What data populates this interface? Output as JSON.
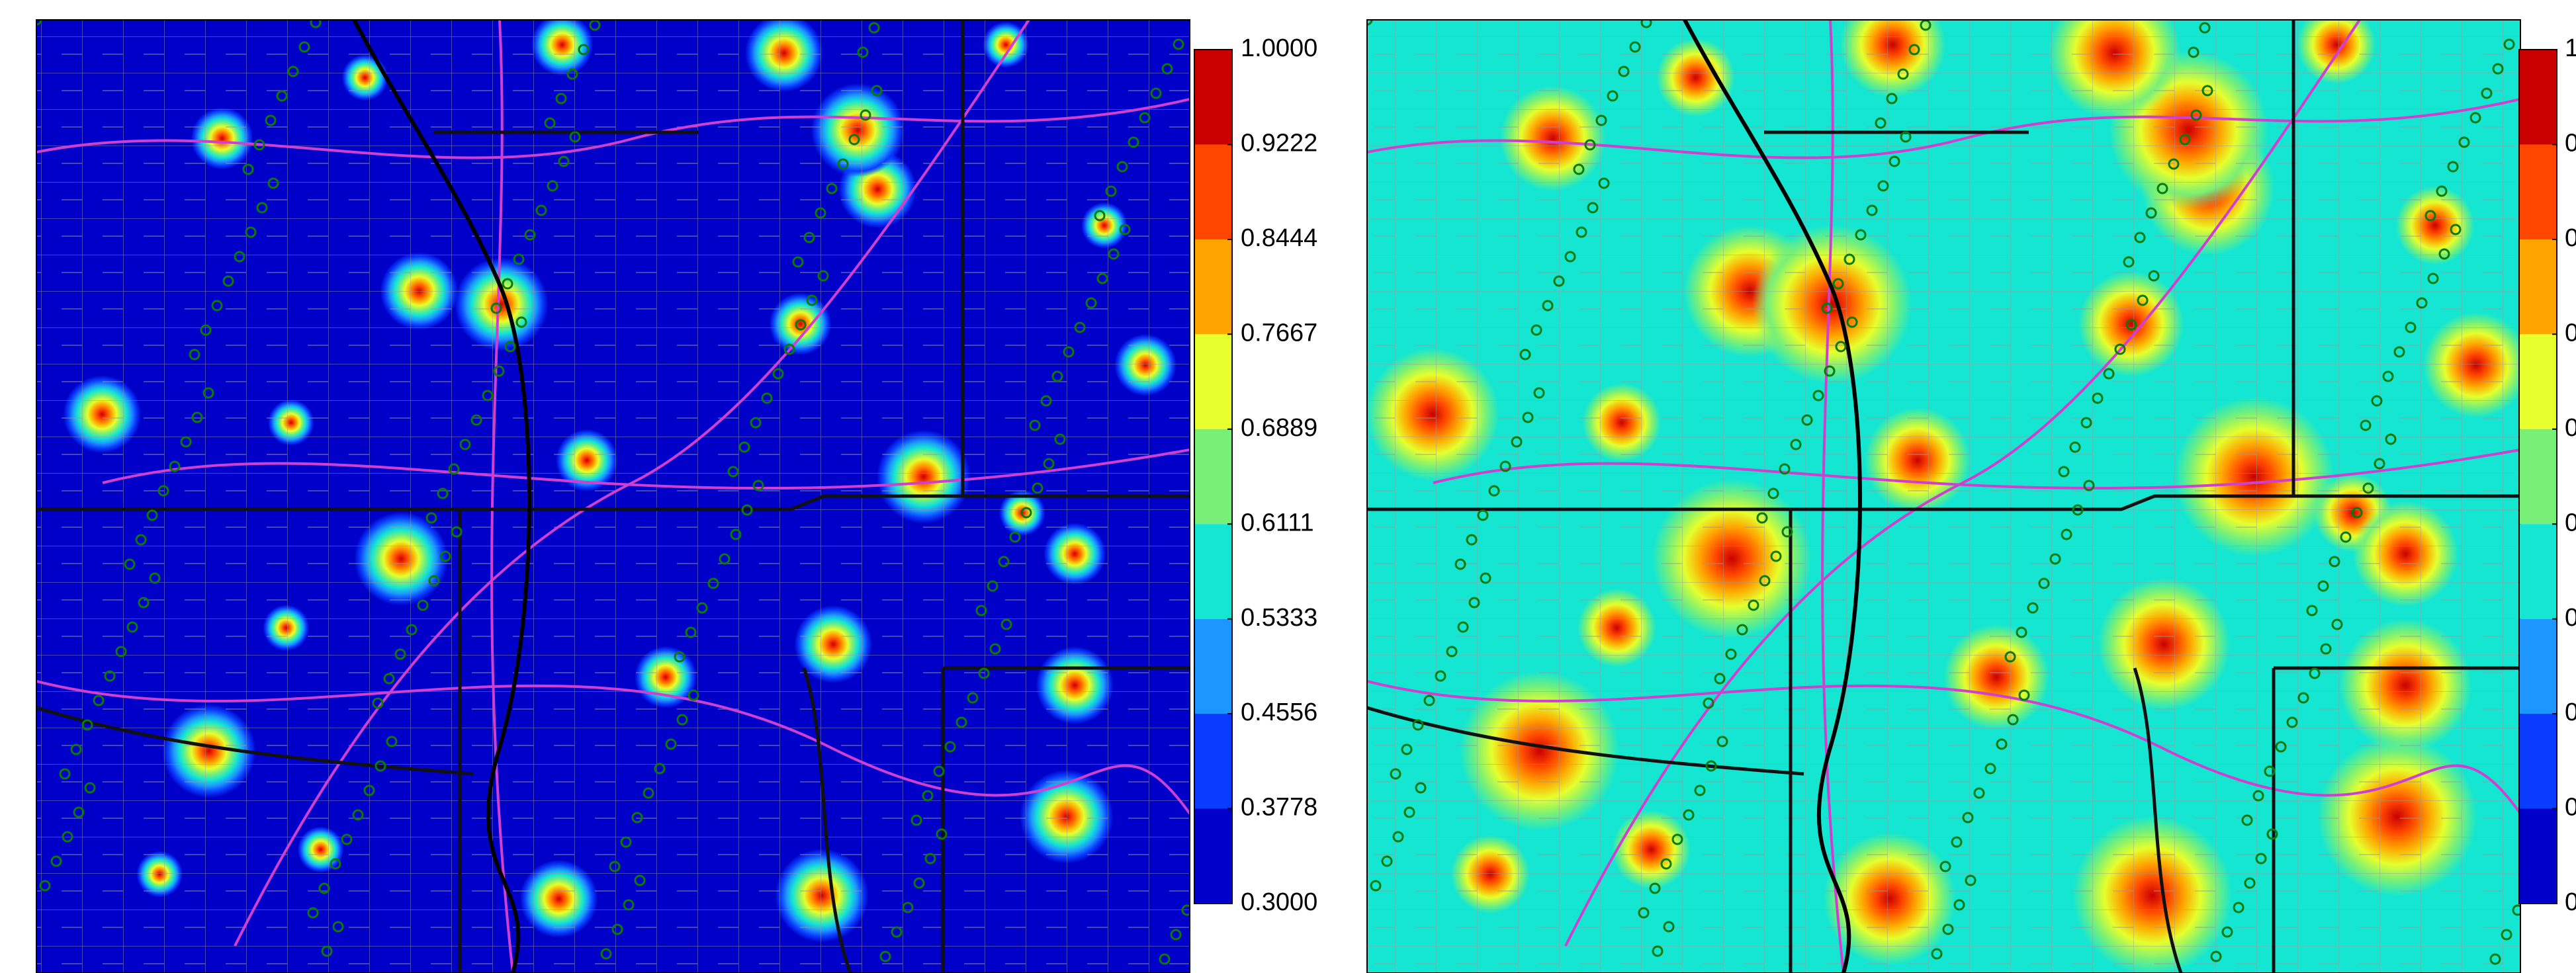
{
  "colorbar": {
    "ticks": [
      {
        "value": 1,
        "label": "1.0000"
      },
      0.9222,
      0.8444,
      0.7667,
      0.6889,
      0.6111,
      0.5333,
      0.4556,
      0.3778,
      {
        "value": 0.3,
        "label": "0.3000"
      }
    ],
    "colors": [
      "#c80000",
      "#ff4600",
      "#ffa500",
      "#e6ff2d",
      "#78f078",
      "#14e6d2",
      "#1e96ff",
      "#0a3cff",
      "#0000c8"
    ]
  }
}
